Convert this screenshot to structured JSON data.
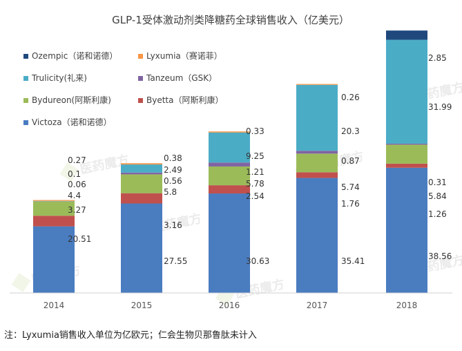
{
  "chart_data": {
    "type": "bar",
    "stacked": true,
    "title": "GLP-1受体激动剂类降糖药全球销售收入（亿美元）",
    "categories": [
      "2014",
      "2015",
      "2016",
      "2017",
      "2018"
    ],
    "series": [
      {
        "name": "Victoza（诺和诺德）",
        "color": "#4a7cc0",
        "values": [
          20.51,
          27.55,
          30.63,
          35.41,
          38.56
        ]
      },
      {
        "name": "Byetta（阿斯利康）",
        "color": "#c0504d",
        "values": [
          3.27,
          3.16,
          2.54,
          1.76,
          1.26
        ]
      },
      {
        "name": "Bydureon(阿斯利康)",
        "color": "#9bbb59",
        "values": [
          4.4,
          5.8,
          5.78,
          5.74,
          5.84
        ]
      },
      {
        "name": "Tanzeum（GSK）",
        "color": "#8064a2",
        "values": [
          0.06,
          0.56,
          1.21,
          0.87,
          0.31
        ]
      },
      {
        "name": "Trulicity(礼来)",
        "color": "#4bacc6",
        "values": [
          0.1,
          2.49,
          9.25,
          20.3,
          31.99
        ]
      },
      {
        "name": "Lyxumia（赛诺菲）",
        "color": "#f79646",
        "values": [
          0.27,
          0.38,
          0.33,
          0.26,
          null
        ]
      },
      {
        "name": "Ozempic（诺和诺德）",
        "color": "#1f497d",
        "values": [
          null,
          null,
          null,
          null,
          2.85
        ]
      }
    ],
    "legend_position": "top-left",
    "grid": false,
    "ylim": [
      0,
      82
    ]
  },
  "footnote": "注：Lyxumia销售收入单位为亿欧元；仁会生物贝那鲁肽未计入",
  "watermark": "医药魔方"
}
